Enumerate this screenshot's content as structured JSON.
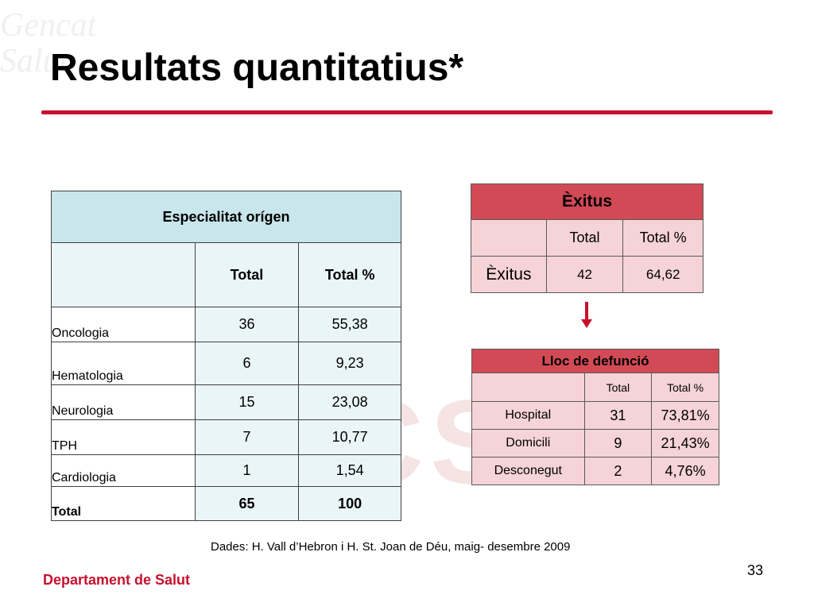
{
  "slide": {
    "title": "Resultats quantitatius*",
    "accent_color": "#c8102e",
    "page_number": "33",
    "footer": "Departament de Salut",
    "source_note": "Dades: H. Vall d’Hebron i H. St. Joan de Déu, maig- desembre 2009",
    "watermark": {
      "letters": "GCSalu",
      "left_text": "Gencat Salut"
    }
  },
  "table_especialitat": {
    "title": "Especialitat  orígen",
    "header_color": "#c9e6ec",
    "columns": [
      "",
      "Total",
      "Total %"
    ],
    "rows": [
      {
        "label": "Oncologia",
        "total": "36",
        "pct": "55,38"
      },
      {
        "label": "Hematologia",
        "total": "6",
        "pct": "9,23"
      },
      {
        "label": "Neurologia",
        "total": "15",
        "pct": "23,08"
      },
      {
        "label": "TPH",
        "total": "7",
        "pct": "10,77"
      },
      {
        "label": "Cardiologia",
        "total": "1",
        "pct": "1,54"
      }
    ],
    "total_row": {
      "label": "Total",
      "total": "65",
      "pct": "100"
    }
  },
  "table_exitus": {
    "title": "Èxitus",
    "header_color": "#d24a55",
    "columns": [
      "",
      "Total",
      "Total %"
    ],
    "row": {
      "label": "Èxitus",
      "total": "42",
      "pct": "64,62"
    }
  },
  "arrow_icon": "down-arrow-icon",
  "table_lloc": {
    "title": "Lloc de defunció",
    "columns": [
      "",
      "Total",
      "Total %"
    ],
    "rows": [
      {
        "label": "Hospital",
        "total": "31",
        "pct": "73,81%"
      },
      {
        "label": "Domicili",
        "total": "9",
        "pct": "21,43%"
      },
      {
        "label": "Desconegut",
        "total": "2",
        "pct": "4,76%"
      }
    ]
  }
}
